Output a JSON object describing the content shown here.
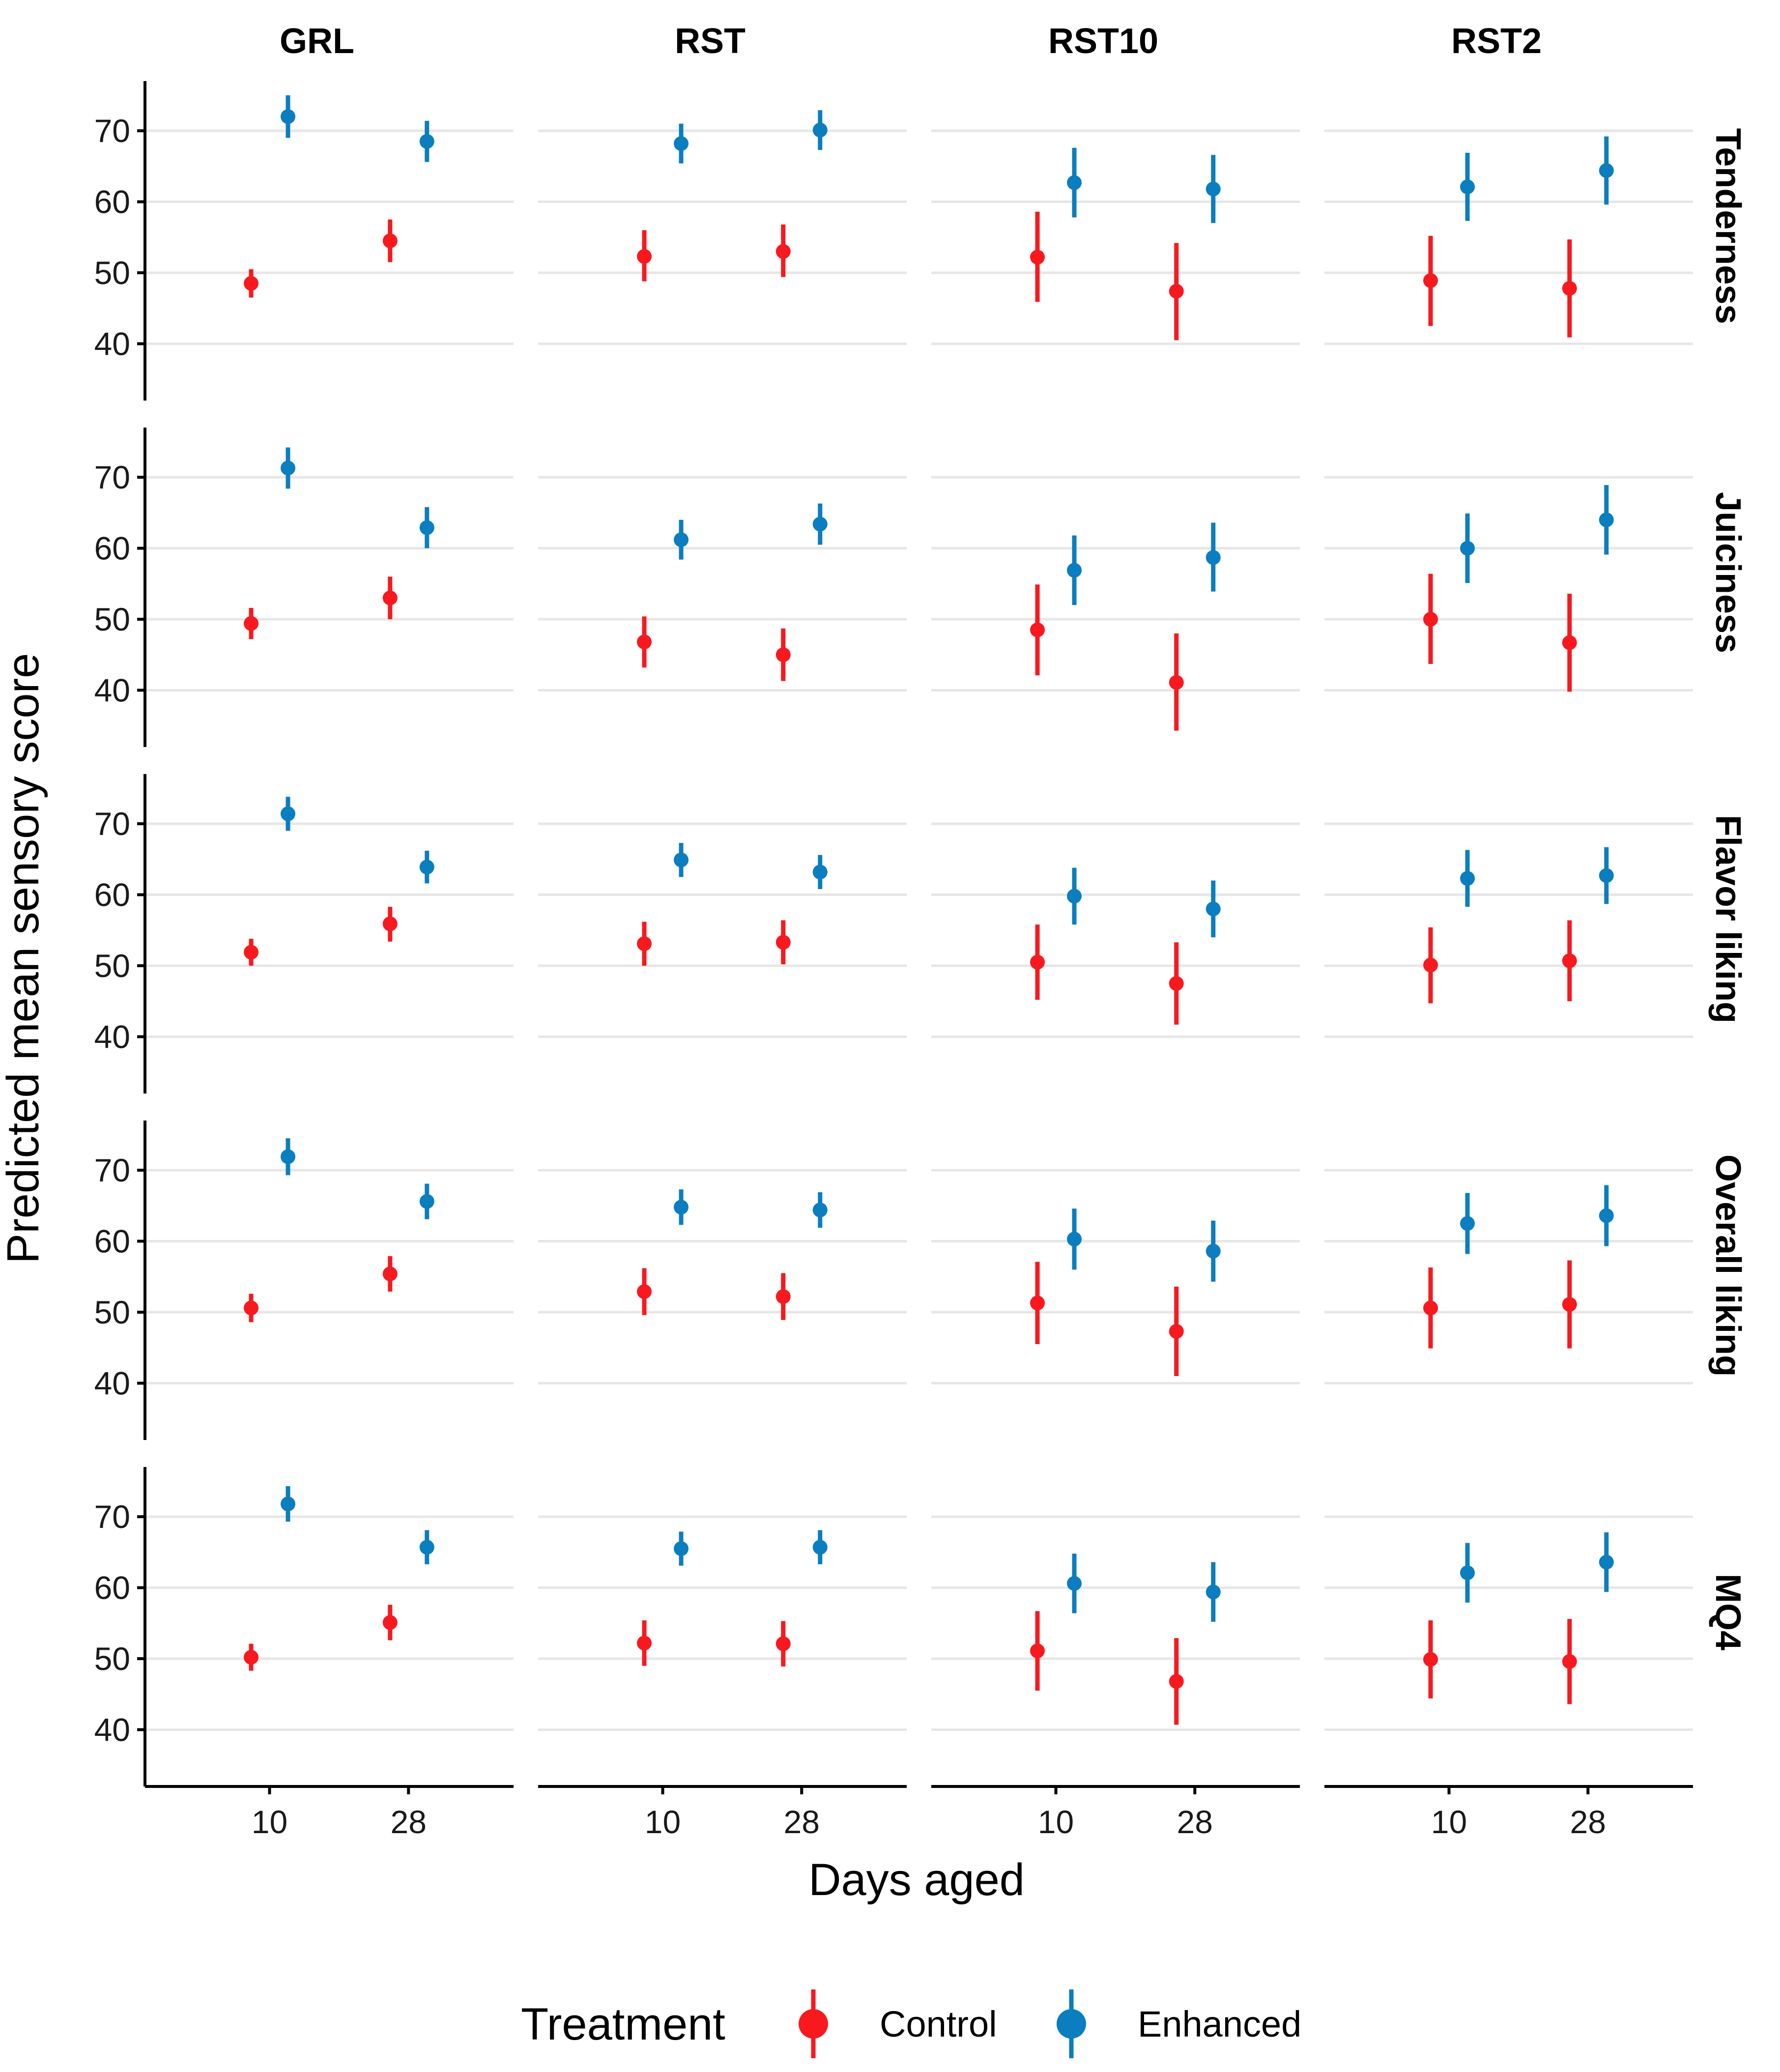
{
  "chart_data": {
    "type": "scatter",
    "subtype": "point-range facet grid",
    "xlabel": "Days aged",
    "ylabel": "Predicted mean sensory score",
    "ylim": [
      32,
      77
    ],
    "yticks": [
      40,
      50,
      60,
      70
    ],
    "x_categories": [
      "10",
      "28"
    ],
    "column_facets": [
      "GRL",
      "RST",
      "RST10",
      "RST2"
    ],
    "row_facets": [
      "Tenderness",
      "Juiciness",
      "Flavor liking",
      "Overall liking",
      "MQ4"
    ],
    "legend": {
      "title": "Treatment",
      "position": "bottom",
      "entries": [
        {
          "name": "Control",
          "color": "#f8191f"
        },
        {
          "name": "Enhanced",
          "color": "#0a7ebf"
        }
      ]
    },
    "series": [
      {
        "name": "Control",
        "color": "#f8191f",
        "data": [
          {
            "row": "Tenderness",
            "col": "GRL",
            "day": "10",
            "mean": 48.5,
            "lo": 46.5,
            "hi": 50.5
          },
          {
            "row": "Tenderness",
            "col": "GRL",
            "day": "28",
            "mean": 54.5,
            "lo": 51.5,
            "hi": 57.5
          },
          {
            "row": "Tenderness",
            "col": "RST",
            "day": "10",
            "mean": 52.3,
            "lo": 48.8,
            "hi": 56.0
          },
          {
            "row": "Tenderness",
            "col": "RST",
            "day": "28",
            "mean": 53.0,
            "lo": 49.4,
            "hi": 56.8
          },
          {
            "row": "Tenderness",
            "col": "RST10",
            "day": "10",
            "mean": 52.2,
            "lo": 45.9,
            "hi": 58.6
          },
          {
            "row": "Tenderness",
            "col": "RST10",
            "day": "28",
            "mean": 47.4,
            "lo": 40.5,
            "hi": 54.2
          },
          {
            "row": "Tenderness",
            "col": "RST2",
            "day": "10",
            "mean": 48.9,
            "lo": 42.5,
            "hi": 55.2
          },
          {
            "row": "Tenderness",
            "col": "RST2",
            "day": "28",
            "mean": 47.8,
            "lo": 40.9,
            "hi": 54.7
          },
          {
            "row": "Juiciness",
            "col": "GRL",
            "day": "10",
            "mean": 49.4,
            "lo": 47.2,
            "hi": 51.6
          },
          {
            "row": "Juiciness",
            "col": "GRL",
            "day": "28",
            "mean": 53.0,
            "lo": 50.0,
            "hi": 56.0
          },
          {
            "row": "Juiciness",
            "col": "RST",
            "day": "10",
            "mean": 46.8,
            "lo": 43.2,
            "hi": 50.4
          },
          {
            "row": "Juiciness",
            "col": "RST",
            "day": "28",
            "mean": 45.0,
            "lo": 41.3,
            "hi": 48.7
          },
          {
            "row": "Juiciness",
            "col": "RST10",
            "day": "10",
            "mean": 48.5,
            "lo": 42.1,
            "hi": 54.9
          },
          {
            "row": "Juiciness",
            "col": "RST10",
            "day": "28",
            "mean": 41.1,
            "lo": 34.3,
            "hi": 48.0
          },
          {
            "row": "Juiciness",
            "col": "RST2",
            "day": "10",
            "mean": 50.0,
            "lo": 43.7,
            "hi": 56.4
          },
          {
            "row": "Juiciness",
            "col": "RST2",
            "day": "28",
            "mean": 46.7,
            "lo": 39.8,
            "hi": 53.6
          },
          {
            "row": "Flavor liking",
            "col": "GRL",
            "day": "10",
            "mean": 51.9,
            "lo": 50.0,
            "hi": 53.8
          },
          {
            "row": "Flavor liking",
            "col": "GRL",
            "day": "28",
            "mean": 55.9,
            "lo": 53.4,
            "hi": 58.3
          },
          {
            "row": "Flavor liking",
            "col": "RST",
            "day": "10",
            "mean": 53.1,
            "lo": 50.0,
            "hi": 56.2
          },
          {
            "row": "Flavor liking",
            "col": "RST",
            "day": "28",
            "mean": 53.3,
            "lo": 50.2,
            "hi": 56.4
          },
          {
            "row": "Flavor liking",
            "col": "RST10",
            "day": "10",
            "mean": 50.5,
            "lo": 45.2,
            "hi": 55.8
          },
          {
            "row": "Flavor liking",
            "col": "RST10",
            "day": "28",
            "mean": 47.5,
            "lo": 41.7,
            "hi": 53.3
          },
          {
            "row": "Flavor liking",
            "col": "RST2",
            "day": "10",
            "mean": 50.1,
            "lo": 44.7,
            "hi": 55.4
          },
          {
            "row": "Flavor liking",
            "col": "RST2",
            "day": "28",
            "mean": 50.7,
            "lo": 45.0,
            "hi": 56.4
          },
          {
            "row": "Overall liking",
            "col": "GRL",
            "day": "10",
            "mean": 50.6,
            "lo": 48.6,
            "hi": 52.6
          },
          {
            "row": "Overall liking",
            "col": "GRL",
            "day": "28",
            "mean": 55.4,
            "lo": 52.9,
            "hi": 57.9
          },
          {
            "row": "Overall liking",
            "col": "RST",
            "day": "10",
            "mean": 52.9,
            "lo": 49.6,
            "hi": 56.2
          },
          {
            "row": "Overall liking",
            "col": "RST",
            "day": "28",
            "mean": 52.2,
            "lo": 48.9,
            "hi": 55.5
          },
          {
            "row": "Overall liking",
            "col": "RST10",
            "day": "10",
            "mean": 51.3,
            "lo": 45.5,
            "hi": 57.1
          },
          {
            "row": "Overall liking",
            "col": "RST10",
            "day": "28",
            "mean": 47.3,
            "lo": 41.0,
            "hi": 53.6
          },
          {
            "row": "Overall liking",
            "col": "RST2",
            "day": "10",
            "mean": 50.6,
            "lo": 44.9,
            "hi": 56.3
          },
          {
            "row": "Overall liking",
            "col": "RST2",
            "day": "28",
            "mean": 51.1,
            "lo": 44.9,
            "hi": 57.3
          },
          {
            "row": "MQ4",
            "col": "GRL",
            "day": "10",
            "mean": 50.2,
            "lo": 48.3,
            "hi": 52.1
          },
          {
            "row": "MQ4",
            "col": "GRL",
            "day": "28",
            "mean": 55.1,
            "lo": 52.6,
            "hi": 57.6
          },
          {
            "row": "MQ4",
            "col": "RST",
            "day": "10",
            "mean": 52.2,
            "lo": 49.0,
            "hi": 55.4
          },
          {
            "row": "MQ4",
            "col": "RST",
            "day": "28",
            "mean": 52.1,
            "lo": 48.9,
            "hi": 55.3
          },
          {
            "row": "MQ4",
            "col": "RST10",
            "day": "10",
            "mean": 51.1,
            "lo": 45.5,
            "hi": 56.7
          },
          {
            "row": "MQ4",
            "col": "RST10",
            "day": "28",
            "mean": 46.8,
            "lo": 40.7,
            "hi": 52.9
          },
          {
            "row": "MQ4",
            "col": "RST2",
            "day": "10",
            "mean": 49.9,
            "lo": 44.4,
            "hi": 55.4
          },
          {
            "row": "MQ4",
            "col": "RST2",
            "day": "28",
            "mean": 49.6,
            "lo": 43.6,
            "hi": 55.6
          }
        ]
      },
      {
        "name": "Enhanced",
        "color": "#0a7ebf",
        "data": [
          {
            "row": "Tenderness",
            "col": "GRL",
            "day": "10",
            "mean": 72.0,
            "lo": 69.0,
            "hi": 75.0
          },
          {
            "row": "Tenderness",
            "col": "GRL",
            "day": "28",
            "mean": 68.5,
            "lo": 65.6,
            "hi": 71.4
          },
          {
            "row": "Tenderness",
            "col": "RST",
            "day": "10",
            "mean": 68.2,
            "lo": 65.4,
            "hi": 71.0
          },
          {
            "row": "Tenderness",
            "col": "RST",
            "day": "28",
            "mean": 70.1,
            "lo": 67.3,
            "hi": 72.9
          },
          {
            "row": "Tenderness",
            "col": "RST10",
            "day": "10",
            "mean": 62.7,
            "lo": 57.8,
            "hi": 67.6
          },
          {
            "row": "Tenderness",
            "col": "RST10",
            "day": "28",
            "mean": 61.8,
            "lo": 57.0,
            "hi": 66.6
          },
          {
            "row": "Tenderness",
            "col": "RST2",
            "day": "10",
            "mean": 62.1,
            "lo": 57.3,
            "hi": 66.9
          },
          {
            "row": "Tenderness",
            "col": "RST2",
            "day": "28",
            "mean": 64.4,
            "lo": 59.6,
            "hi": 69.2
          },
          {
            "row": "Juiciness",
            "col": "GRL",
            "day": "10",
            "mean": 71.3,
            "lo": 68.4,
            "hi": 74.2
          },
          {
            "row": "Juiciness",
            "col": "GRL",
            "day": "28",
            "mean": 62.9,
            "lo": 60.0,
            "hi": 65.8
          },
          {
            "row": "Juiciness",
            "col": "RST",
            "day": "10",
            "mean": 61.2,
            "lo": 58.4,
            "hi": 64.0
          },
          {
            "row": "Juiciness",
            "col": "RST",
            "day": "28",
            "mean": 63.4,
            "lo": 60.5,
            "hi": 66.3
          },
          {
            "row": "Juiciness",
            "col": "RST10",
            "day": "10",
            "mean": 56.9,
            "lo": 52.0,
            "hi": 61.8
          },
          {
            "row": "Juiciness",
            "col": "RST10",
            "day": "28",
            "mean": 58.7,
            "lo": 53.9,
            "hi": 63.6
          },
          {
            "row": "Juiciness",
            "col": "RST2",
            "day": "10",
            "mean": 60.0,
            "lo": 55.1,
            "hi": 64.9
          },
          {
            "row": "Juiciness",
            "col": "RST2",
            "day": "28",
            "mean": 64.0,
            "lo": 59.1,
            "hi": 68.9
          },
          {
            "row": "Flavor liking",
            "col": "GRL",
            "day": "10",
            "mean": 71.4,
            "lo": 69.0,
            "hi": 73.8
          },
          {
            "row": "Flavor liking",
            "col": "GRL",
            "day": "28",
            "mean": 63.9,
            "lo": 61.6,
            "hi": 66.2
          },
          {
            "row": "Flavor liking",
            "col": "RST",
            "day": "10",
            "mean": 64.9,
            "lo": 62.5,
            "hi": 67.3
          },
          {
            "row": "Flavor liking",
            "col": "RST",
            "day": "28",
            "mean": 63.2,
            "lo": 60.8,
            "hi": 65.6
          },
          {
            "row": "Flavor liking",
            "col": "RST10",
            "day": "10",
            "mean": 59.8,
            "lo": 55.8,
            "hi": 63.8
          },
          {
            "row": "Flavor liking",
            "col": "RST10",
            "day": "28",
            "mean": 58.0,
            "lo": 54.0,
            "hi": 62.0
          },
          {
            "row": "Flavor liking",
            "col": "RST2",
            "day": "10",
            "mean": 62.3,
            "lo": 58.3,
            "hi": 66.3
          },
          {
            "row": "Flavor liking",
            "col": "RST2",
            "day": "28",
            "mean": 62.7,
            "lo": 58.7,
            "hi": 66.7
          },
          {
            "row": "Overall liking",
            "col": "GRL",
            "day": "10",
            "mean": 71.9,
            "lo": 69.3,
            "hi": 74.5
          },
          {
            "row": "Overall liking",
            "col": "GRL",
            "day": "28",
            "mean": 65.6,
            "lo": 63.1,
            "hi": 68.1
          },
          {
            "row": "Overall liking",
            "col": "RST",
            "day": "10",
            "mean": 64.8,
            "lo": 62.3,
            "hi": 67.3
          },
          {
            "row": "Overall liking",
            "col": "RST",
            "day": "28",
            "mean": 64.4,
            "lo": 61.9,
            "hi": 66.9
          },
          {
            "row": "Overall liking",
            "col": "RST10",
            "day": "10",
            "mean": 60.3,
            "lo": 56.0,
            "hi": 64.6
          },
          {
            "row": "Overall liking",
            "col": "RST10",
            "day": "28",
            "mean": 58.6,
            "lo": 54.3,
            "hi": 62.9
          },
          {
            "row": "Overall liking",
            "col": "RST2",
            "day": "10",
            "mean": 62.5,
            "lo": 58.2,
            "hi": 66.8
          },
          {
            "row": "Overall liking",
            "col": "RST2",
            "day": "28",
            "mean": 63.6,
            "lo": 59.3,
            "hi": 67.9
          },
          {
            "row": "MQ4",
            "col": "GRL",
            "day": "10",
            "mean": 71.8,
            "lo": 69.3,
            "hi": 74.3
          },
          {
            "row": "MQ4",
            "col": "GRL",
            "day": "28",
            "mean": 65.7,
            "lo": 63.3,
            "hi": 68.1
          },
          {
            "row": "MQ4",
            "col": "RST",
            "day": "10",
            "mean": 65.5,
            "lo": 63.1,
            "hi": 67.9
          },
          {
            "row": "MQ4",
            "col": "RST",
            "day": "28",
            "mean": 65.7,
            "lo": 63.3,
            "hi": 68.1
          },
          {
            "row": "MQ4",
            "col": "RST10",
            "day": "10",
            "mean": 60.6,
            "lo": 56.4,
            "hi": 64.8
          },
          {
            "row": "MQ4",
            "col": "RST10",
            "day": "28",
            "mean": 59.4,
            "lo": 55.2,
            "hi": 63.6
          },
          {
            "row": "MQ4",
            "col": "RST2",
            "day": "10",
            "mean": 62.1,
            "lo": 57.9,
            "hi": 66.3
          },
          {
            "row": "MQ4",
            "col": "RST2",
            "day": "28",
            "mean": 63.6,
            "lo": 59.4,
            "hi": 67.8
          }
        ]
      }
    ]
  }
}
